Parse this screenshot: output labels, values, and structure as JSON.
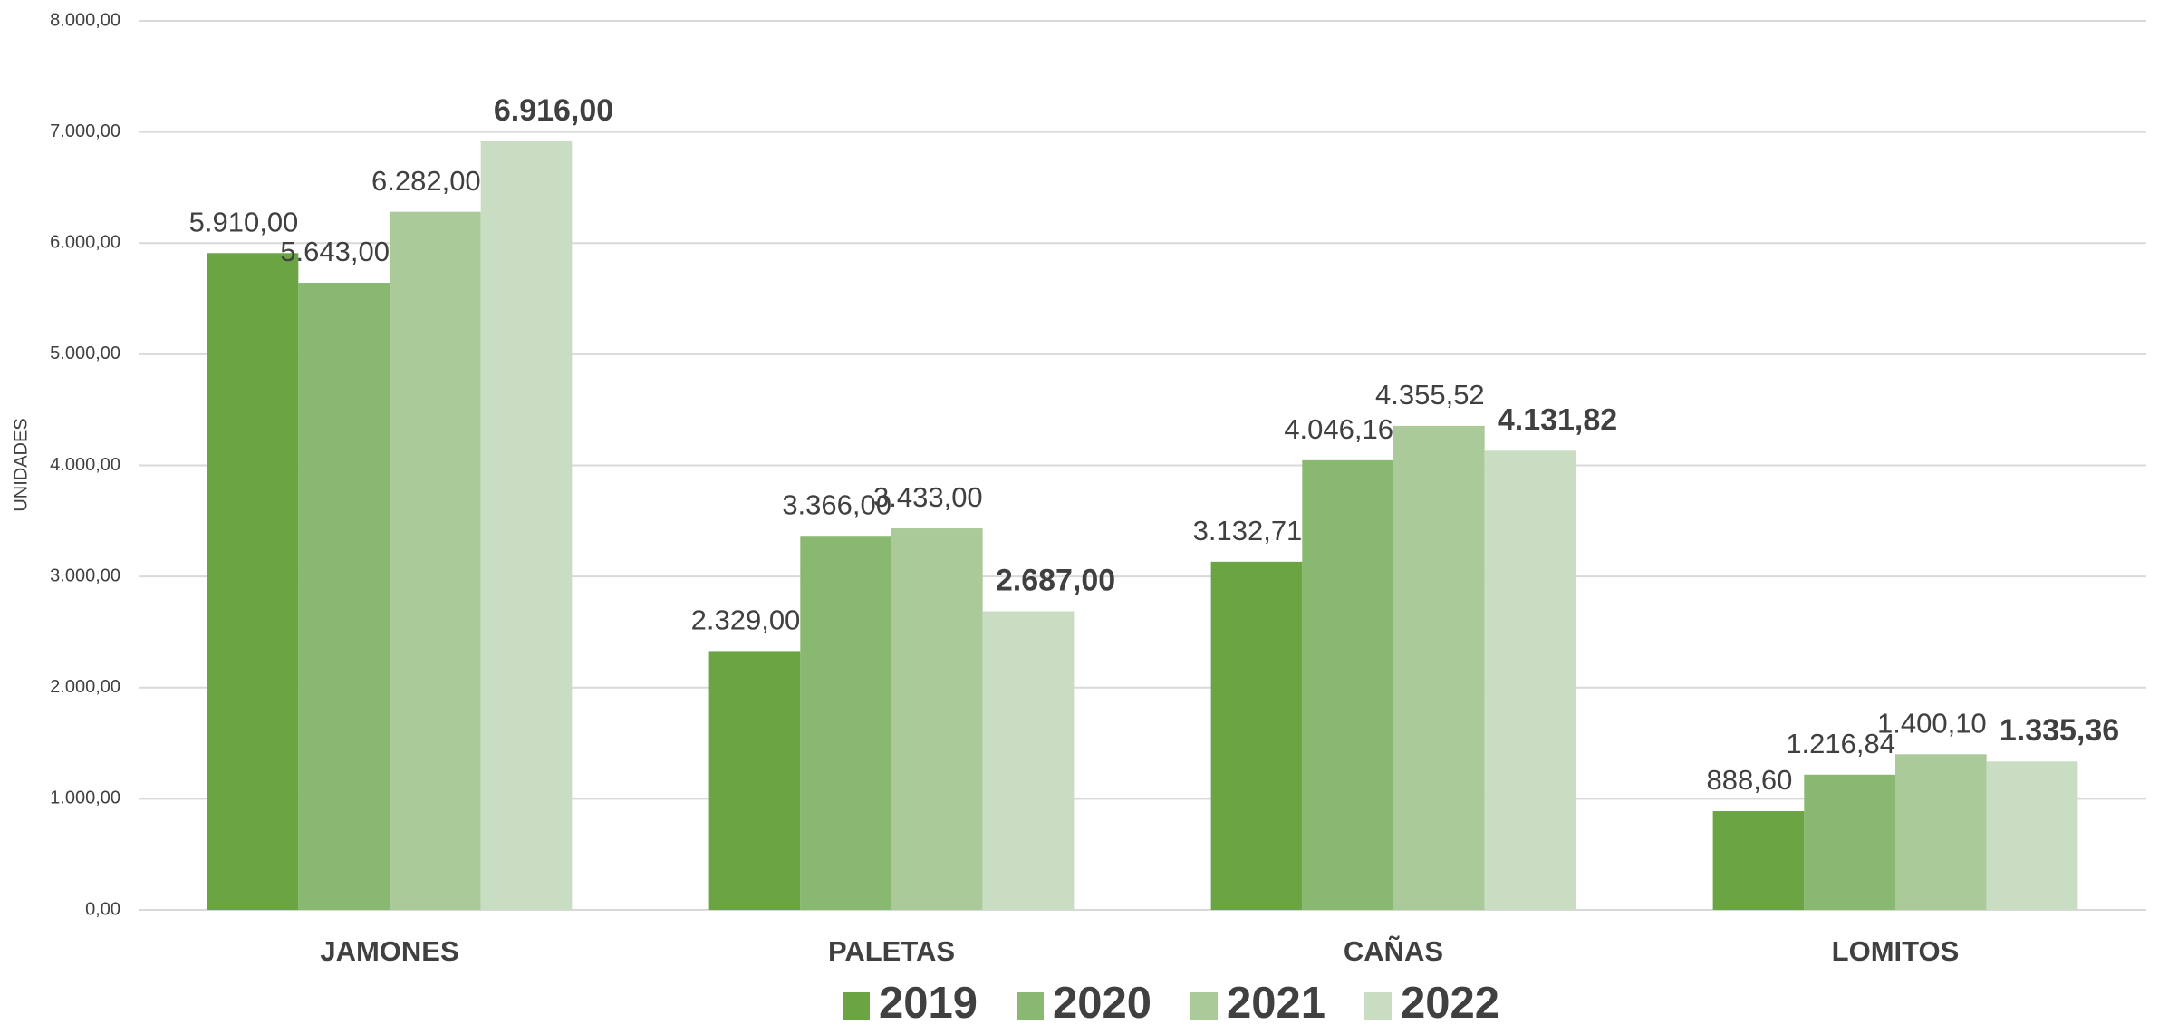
{
  "chart_data": {
    "type": "bar",
    "y_axis_label": "UNIDADES",
    "categories": [
      "JAMONES",
      "PALETAS",
      "CAÑAS",
      "LOMITOS"
    ],
    "series": [
      {
        "name": "2019",
        "color": "#6aa443",
        "values": [
          5910,
          2329,
          3132.71,
          888.6
        ],
        "value_labels": [
          "5.910,00",
          "2.329,00",
          "3.132,71",
          "888,60"
        ]
      },
      {
        "name": "2020",
        "color": "#89b970",
        "values": [
          5643,
          3366,
          4046.16,
          1216.84
        ],
        "value_labels": [
          "5.643,00",
          "3.366,00",
          "4.046,16",
          "1.216,84"
        ]
      },
      {
        "name": "2021",
        "color": "#abca9a",
        "values": [
          6282,
          3433,
          4355.52,
          1400.1
        ],
        "value_labels": [
          "6.282,00",
          "3.433,00",
          "4.355,52",
          "1.400,10"
        ]
      },
      {
        "name": "2022",
        "color": "#c9ddc2",
        "values": [
          6916,
          2687,
          4131.82,
          1335.36
        ],
        "value_labels": [
          "6.916,00",
          "2.687,00",
          "4.131,82",
          "1.335,36"
        ]
      }
    ],
    "ylim": [
      0,
      8000
    ],
    "yticks": [
      {
        "value": 0,
        "label": "0,00"
      },
      {
        "value": 1000,
        "label": "1.000,00"
      },
      {
        "value": 2000,
        "label": "2.000,00"
      },
      {
        "value": 3000,
        "label": "3.000,00"
      },
      {
        "value": 4000,
        "label": "4.000,00"
      },
      {
        "value": 5000,
        "label": "5.000,00"
      },
      {
        "value": 6000,
        "label": "6.000,00"
      },
      {
        "value": 7000,
        "label": "7.000,00"
      },
      {
        "value": 8000,
        "label": "8.000,00"
      }
    ],
    "grid": true,
    "legend": "bottom"
  }
}
